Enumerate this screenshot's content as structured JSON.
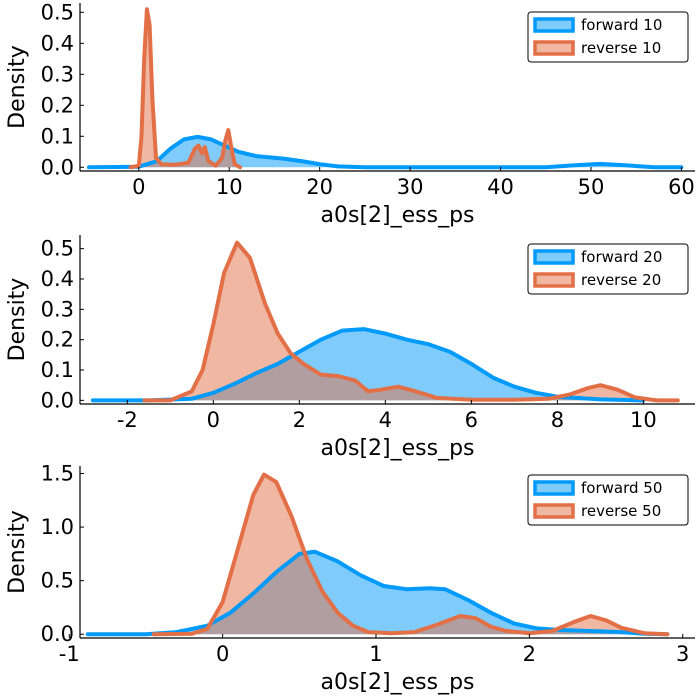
{
  "chart_data": [
    {
      "type": "area",
      "xlabel": "a0s[2]_ess_ps",
      "ylabel": "Density",
      "xlim": [
        -6.5,
        61.5
      ],
      "ylim": [
        -0.012,
        0.53
      ],
      "xticks": [
        0,
        10,
        20,
        30,
        40,
        50,
        60
      ],
      "xtick_labels": [
        "0",
        "10",
        "20",
        "30",
        "40",
        "50",
        "60"
      ],
      "yticks": [
        0.0,
        0.1,
        0.2,
        0.3,
        0.4,
        0.5
      ],
      "ytick_labels": [
        "0.0",
        "0.1",
        "0.2",
        "0.3",
        "0.4",
        "0.5"
      ],
      "grid": false,
      "legend_position": "top-right",
      "series": [
        {
          "name": "forward 10",
          "color": "#009AFA",
          "points": [
            [
              -5.5,
              0.0
            ],
            [
              0,
              0.002
            ],
            [
              2,
              0.02
            ],
            [
              3.5,
              0.06
            ],
            [
              5,
              0.09
            ],
            [
              6.5,
              0.098
            ],
            [
              8,
              0.09
            ],
            [
              9.5,
              0.07
            ],
            [
              11,
              0.05
            ],
            [
              13,
              0.036
            ],
            [
              16,
              0.028
            ],
            [
              18,
              0.02
            ],
            [
              20,
              0.01
            ],
            [
              22,
              0.003
            ],
            [
              25,
              0.0
            ],
            [
              30,
              0.0
            ],
            [
              40,
              0.0
            ],
            [
              45,
              0.0
            ],
            [
              48,
              0.006
            ],
            [
              51,
              0.011
            ],
            [
              54,
              0.006
            ],
            [
              57,
              0.0
            ],
            [
              60,
              0.0
            ]
          ]
        },
        {
          "name": "reverse 10",
          "color": "#E26F46",
          "points": [
            [
              -0.9,
              0.0
            ],
            [
              0,
              0.005
            ],
            [
              0.3,
              0.1
            ],
            [
              0.6,
              0.35
            ],
            [
              0.9,
              0.51
            ],
            [
              1.2,
              0.46
            ],
            [
              1.5,
              0.22
            ],
            [
              1.9,
              0.03
            ],
            [
              2.5,
              0.01
            ],
            [
              4,
              0.008
            ],
            [
              5.5,
              0.015
            ],
            [
              6.2,
              0.06
            ],
            [
              6.6,
              0.07
            ],
            [
              7,
              0.045
            ],
            [
              7.3,
              0.065
            ],
            [
              7.7,
              0.02
            ],
            [
              8.5,
              0.005
            ],
            [
              9.2,
              0.03
            ],
            [
              9.6,
              0.09
            ],
            [
              9.9,
              0.12
            ],
            [
              10.2,
              0.07
            ],
            [
              10.6,
              0.01
            ],
            [
              11.2,
              0.0
            ]
          ]
        }
      ]
    },
    {
      "type": "area",
      "xlabel": "a0s[2]_ess_ps",
      "ylabel": "Density",
      "xlim": [
        -3.1,
        11.2
      ],
      "ylim": [
        -0.012,
        0.545
      ],
      "xticks": [
        -2,
        0,
        2,
        4,
        6,
        8,
        10
      ],
      "xtick_labels": [
        "-2",
        "0",
        "2",
        "4",
        "6",
        "8",
        "10"
      ],
      "yticks": [
        0.0,
        0.1,
        0.2,
        0.3,
        0.4,
        0.5
      ],
      "ytick_labels": [
        "0.0",
        "0.1",
        "0.2",
        "0.3",
        "0.4",
        "0.5"
      ],
      "grid": false,
      "legend_position": "top-right",
      "series": [
        {
          "name": "forward 20",
          "color": "#009AFA",
          "points": [
            [
              -2.8,
              0.0
            ],
            [
              -1.5,
              0.0
            ],
            [
              -0.5,
              0.005
            ],
            [
              0,
              0.025
            ],
            [
              0.5,
              0.055
            ],
            [
              1,
              0.09
            ],
            [
              1.5,
              0.12
            ],
            [
              2,
              0.16
            ],
            [
              2.5,
              0.2
            ],
            [
              3,
              0.23
            ],
            [
              3.5,
              0.235
            ],
            [
              4,
              0.22
            ],
            [
              4.5,
              0.2
            ],
            [
              5,
              0.185
            ],
            [
              5.5,
              0.16
            ],
            [
              6,
              0.12
            ],
            [
              6.5,
              0.075
            ],
            [
              7,
              0.045
            ],
            [
              7.5,
              0.025
            ],
            [
              8,
              0.012
            ],
            [
              9,
              0.003
            ],
            [
              10,
              0.0
            ]
          ]
        },
        {
          "name": "reverse 20",
          "color": "#E26F46",
          "points": [
            [
              -1.6,
              0.0
            ],
            [
              -1,
              0.0
            ],
            [
              -0.5,
              0.03
            ],
            [
              -0.25,
              0.1
            ],
            [
              0,
              0.25
            ],
            [
              0.25,
              0.42
            ],
            [
              0.55,
              0.52
            ],
            [
              0.85,
              0.47
            ],
            [
              1.2,
              0.32
            ],
            [
              1.5,
              0.22
            ],
            [
              1.8,
              0.155
            ],
            [
              2.1,
              0.12
            ],
            [
              2.5,
              0.085
            ],
            [
              2.9,
              0.08
            ],
            [
              3.3,
              0.065
            ],
            [
              3.6,
              0.03
            ],
            [
              3.9,
              0.035
            ],
            [
              4.3,
              0.045
            ],
            [
              4.7,
              0.03
            ],
            [
              5.2,
              0.008
            ],
            [
              6,
              0.002
            ],
            [
              7,
              0.002
            ],
            [
              7.8,
              0.005
            ],
            [
              8.3,
              0.02
            ],
            [
              8.7,
              0.04
            ],
            [
              9,
              0.05
            ],
            [
              9.4,
              0.035
            ],
            [
              9.8,
              0.01
            ],
            [
              10.3,
              0.0
            ],
            [
              10.8,
              0.0
            ]
          ]
        }
      ]
    },
    {
      "type": "area",
      "xlabel": "a0s[2]_ess_ps",
      "ylabel": "Density",
      "xlim": [
        -0.93,
        3.08
      ],
      "ylim": [
        -0.035,
        1.57
      ],
      "xticks": [
        -1,
        0,
        1,
        2,
        3
      ],
      "xtick_labels": [
        "-1",
        "0",
        "1",
        "2",
        "3"
      ],
      "yticks": [
        0.0,
        0.5,
        1.0,
        1.5
      ],
      "ytick_labels": [
        "0.0",
        "0.5",
        "1.0",
        "1.5"
      ],
      "grid": false,
      "legend_position": "top-right",
      "series": [
        {
          "name": "forward 50",
          "color": "#009AFA",
          "points": [
            [
              -0.88,
              0.0
            ],
            [
              -0.5,
              0.0
            ],
            [
              -0.3,
              0.02
            ],
            [
              -0.1,
              0.08
            ],
            [
              0.05,
              0.2
            ],
            [
              0.2,
              0.38
            ],
            [
              0.35,
              0.58
            ],
            [
              0.5,
              0.75
            ],
            [
              0.6,
              0.77
            ],
            [
              0.75,
              0.68
            ],
            [
              0.9,
              0.55
            ],
            [
              1.05,
              0.45
            ],
            [
              1.2,
              0.42
            ],
            [
              1.35,
              0.43
            ],
            [
              1.45,
              0.42
            ],
            [
              1.6,
              0.32
            ],
            [
              1.75,
              0.2
            ],
            [
              1.9,
              0.1
            ],
            [
              2.05,
              0.055
            ],
            [
              2.2,
              0.04
            ],
            [
              2.4,
              0.03
            ],
            [
              2.6,
              0.02
            ],
            [
              2.75,
              0.005
            ],
            [
              2.9,
              0.0
            ]
          ]
        },
        {
          "name": "reverse 50",
          "color": "#E26F46",
          "points": [
            [
              -0.45,
              0.0
            ],
            [
              -0.2,
              0.005
            ],
            [
              -0.1,
              0.05
            ],
            [
              0,
              0.3
            ],
            [
              0.1,
              0.8
            ],
            [
              0.2,
              1.3
            ],
            [
              0.27,
              1.49
            ],
            [
              0.35,
              1.42
            ],
            [
              0.45,
              1.1
            ],
            [
              0.55,
              0.7
            ],
            [
              0.65,
              0.4
            ],
            [
              0.75,
              0.2
            ],
            [
              0.85,
              0.08
            ],
            [
              0.95,
              0.02
            ],
            [
              1.1,
              0.01
            ],
            [
              1.25,
              0.02
            ],
            [
              1.4,
              0.09
            ],
            [
              1.55,
              0.17
            ],
            [
              1.65,
              0.15
            ],
            [
              1.75,
              0.07
            ],
            [
              1.85,
              0.03
            ],
            [
              2.0,
              0.01
            ],
            [
              2.15,
              0.03
            ],
            [
              2.3,
              0.12
            ],
            [
              2.4,
              0.17
            ],
            [
              2.5,
              0.13
            ],
            [
              2.6,
              0.06
            ],
            [
              2.75,
              0.01
            ],
            [
              2.9,
              0.0
            ]
          ]
        }
      ]
    }
  ]
}
